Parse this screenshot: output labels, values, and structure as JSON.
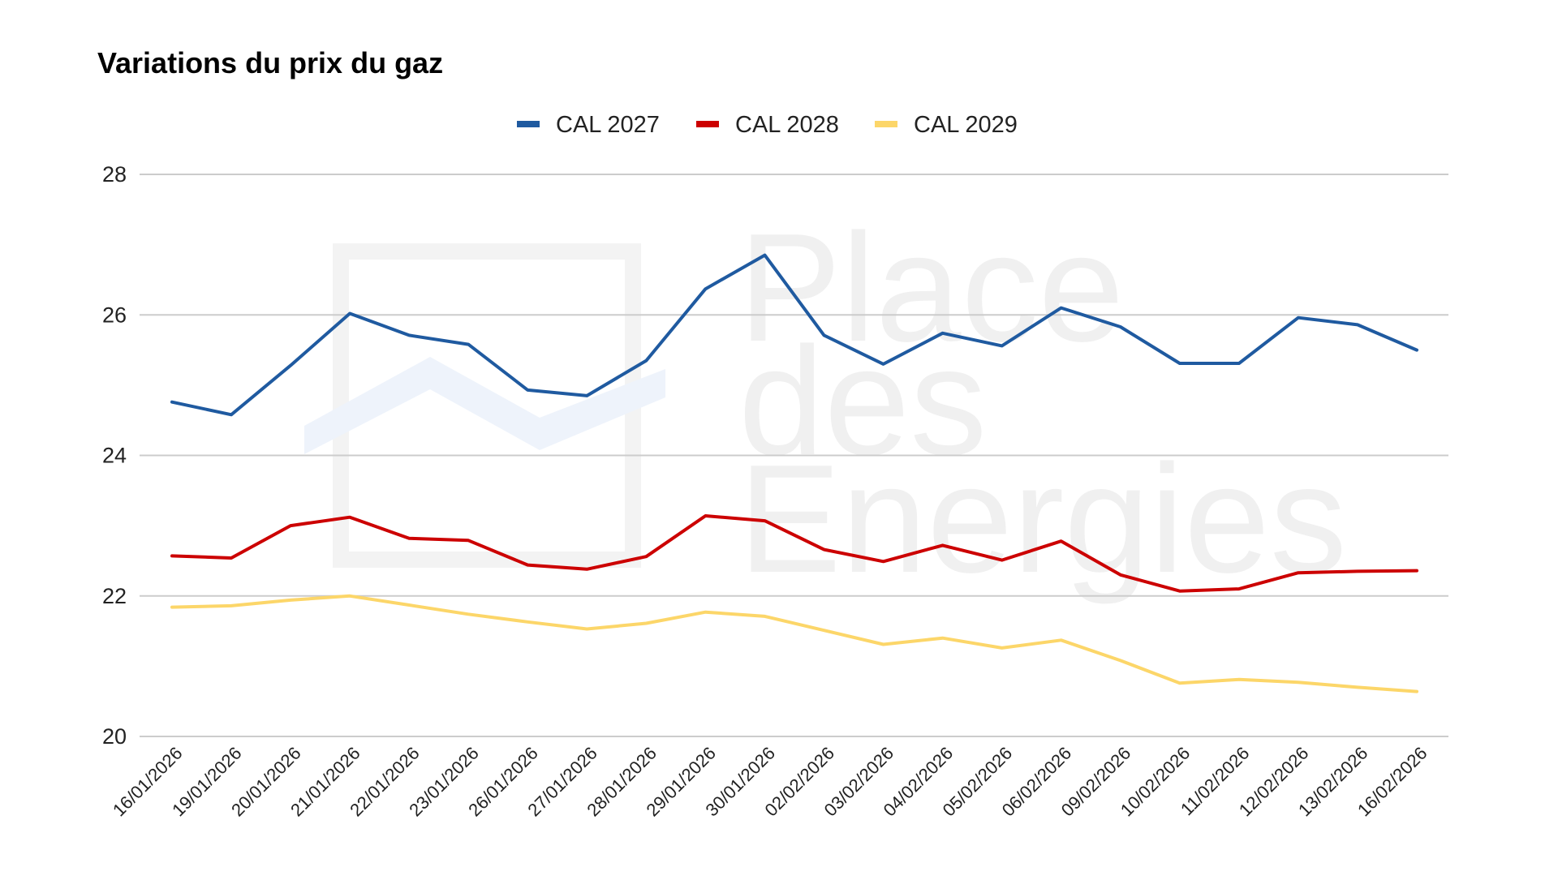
{
  "chart_data": {
    "type": "line",
    "title": "Variations du prix du gaz",
    "watermark": [
      "Place",
      "des",
      "Energies"
    ],
    "x": [
      "16/01/2026",
      "19/01/2026",
      "20/01/2026",
      "21/01/2026",
      "22/01/2026",
      "23/01/2026",
      "26/01/2026",
      "27/01/2026",
      "28/01/2026",
      "29/01/2026",
      "30/01/2026",
      "02/02/2026",
      "03/02/2026",
      "04/02/2026",
      "05/02/2026",
      "06/02/2026",
      "09/02/2026",
      "10/02/2026",
      "11/02/2026",
      "12/02/2026",
      "13/02/2026",
      "16/02/2026"
    ],
    "ylim": [
      20,
      28
    ],
    "yticks": [
      20,
      22,
      24,
      26,
      28
    ],
    "grid": true,
    "legend_position": "top",
    "series": [
      {
        "name": "CAL 2027",
        "color": "#1f5aa0",
        "values": [
          24.76,
          24.58,
          25.28,
          26.02,
          25.71,
          25.58,
          24.93,
          24.85,
          25.35,
          26.37,
          26.85,
          25.71,
          25.3,
          25.74,
          25.56,
          26.1,
          25.83,
          25.31,
          25.31,
          25.96,
          25.86,
          25.5
        ]
      },
      {
        "name": "CAL 2028",
        "color": "#cc0000",
        "values": [
          22.57,
          22.54,
          23.0,
          23.12,
          22.82,
          22.79,
          22.44,
          22.38,
          22.56,
          23.14,
          23.07,
          22.66,
          22.49,
          22.72,
          22.51,
          22.78,
          22.3,
          22.07,
          22.1,
          22.33,
          22.35,
          22.36
        ]
      },
      {
        "name": "CAL 2029",
        "color": "#fcd669",
        "values": [
          21.84,
          21.86,
          21.94,
          22.0,
          21.87,
          21.74,
          21.63,
          21.53,
          21.61,
          21.77,
          21.71,
          21.51,
          21.31,
          21.4,
          21.26,
          21.37,
          21.08,
          20.76,
          20.81,
          20.77,
          20.7,
          20.64
        ]
      }
    ]
  }
}
